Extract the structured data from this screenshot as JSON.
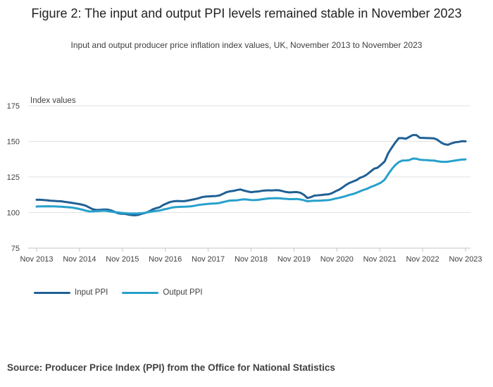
{
  "figure": {
    "title": "Figure 2: The input and output PPI levels remained stable in November 2023",
    "subtitle": "Input and output producer price inflation index values, UK, November 2013 to November 2023",
    "source": "Source: Producer Price Index (PPI) from the Office for National Statistics"
  },
  "colors": {
    "input": "#206095",
    "output": "#27a0cc"
  },
  "chart_data": {
    "type": "line",
    "title": "Figure 2: The input and output PPI levels remained stable in November 2023",
    "xlabel": "",
    "ylabel": "Index values",
    "ylim": [
      75,
      175
    ],
    "yticks": [
      75,
      100,
      125,
      150,
      175
    ],
    "x_tick_labels": [
      "Nov 2013",
      "Nov 2014",
      "Nov 2015",
      "Nov 2016",
      "Nov 2017",
      "Nov 2018",
      "Nov 2019",
      "Nov 2020",
      "Nov 2021",
      "Nov 2022",
      "Nov 2023"
    ],
    "legend_position": "bottom-left",
    "grid": true,
    "series": [
      {
        "name": "Input PPI",
        "color": "#206095",
        "values": [
          109,
          109,
          108.8,
          108.6,
          108.3,
          108.2,
          108,
          107.9,
          107.5,
          107.2,
          106.8,
          106.4,
          106,
          105.5,
          104.8,
          103.5,
          102.3,
          101.8,
          101.9,
          102.1,
          102.1,
          101.6,
          100.7,
          99.6,
          99.2,
          99.1,
          98.6,
          98.2,
          98.1,
          98.4,
          99.2,
          99.8,
          100.8,
          102.2,
          103.1,
          103.7,
          105.3,
          106.4,
          107.4,
          107.9,
          108.1,
          108,
          108,
          108.4,
          108.9,
          109.4,
          110,
          110.8,
          111.2,
          111.3,
          111.5,
          111.6,
          112,
          113.1,
          114.3,
          114.9,
          115.2,
          115.8,
          116.2,
          115.4,
          114.8,
          114.3,
          114.6,
          114.8,
          115.2,
          115.5,
          115.6,
          115.5,
          115.7,
          115.6,
          115,
          114.4,
          114.1,
          114.3,
          114.4,
          113.9,
          112.5,
          110.2,
          110.8,
          111.9,
          112.1,
          112.3,
          112.6,
          112.8,
          113.6,
          114.9,
          116,
          117.6,
          119.4,
          120.8,
          121.8,
          122.8,
          124.4,
          125.3,
          126.8,
          128.8,
          130.8,
          131.5,
          133.6,
          135.9,
          141.6,
          145.5,
          149.1,
          152.2,
          152.3,
          151.8,
          153.1,
          154.4,
          154.4,
          152.5,
          152.4,
          152.3,
          152.2,
          152.1,
          151.1,
          149.2,
          148,
          147.6,
          148.6,
          149.3,
          149.6,
          150.1,
          150
        ]
      },
      {
        "name": "Output PPI",
        "color": "#27a0cc",
        "values": [
          104.2,
          104.3,
          104.3,
          104.4,
          104.3,
          104.3,
          104.2,
          104.1,
          103.9,
          103.7,
          103.5,
          103.1,
          102.6,
          102,
          101.3,
          100.8,
          100.8,
          101,
          101.1,
          101.3,
          101.1,
          100.7,
          100.3,
          100.1,
          99.8,
          99.6,
          99.4,
          99.3,
          99.3,
          99.4,
          99.6,
          99.9,
          100.3,
          100.8,
          101.1,
          101.4,
          102.1,
          102.6,
          103.2,
          103.7,
          103.9,
          104,
          104.1,
          104.2,
          104.4,
          104.8,
          105.3,
          105.6,
          105.9,
          106.1,
          106.3,
          106.4,
          106.7,
          107.3,
          107.9,
          108.4,
          108.5,
          108.6,
          109,
          109.3,
          109.1,
          108.8,
          108.7,
          108.9,
          109.3,
          109.6,
          109.9,
          110,
          110.1,
          110,
          109.8,
          109.6,
          109.4,
          109.4,
          109.5,
          109.2,
          108.7,
          107.9,
          108.1,
          108.3,
          108.3,
          108.4,
          108.6,
          108.7,
          109.2,
          109.8,
          110.3,
          110.9,
          111.6,
          112.4,
          113,
          113.9,
          114.9,
          115.9,
          116.7,
          117.9,
          118.8,
          119.9,
          121.1,
          123.1,
          126.9,
          130.4,
          133.3,
          135.4,
          136.5,
          136.6,
          136.8,
          137.9,
          137.8,
          137.1,
          136.9,
          136.8,
          136.6,
          136.5,
          136,
          135.7,
          135.6,
          135.7,
          136.1,
          136.5,
          136.9,
          137.2,
          137.3
        ]
      }
    ]
  }
}
